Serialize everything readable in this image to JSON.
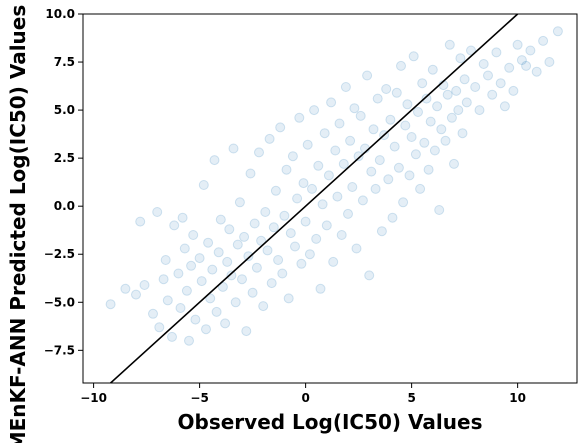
{
  "chart_data": {
    "type": "scatter",
    "title": "",
    "xlabel": "Observed Log(IC50) Values",
    "ylabel": "MEnKF-ANN Predicted Log(IC50) Values",
    "xlim": [
      -10.5,
      12.8
    ],
    "ylim": [
      -9.2,
      10.0
    ],
    "x_ticks": [
      -10,
      -5,
      0,
      5,
      10
    ],
    "y_ticks": [
      -7.5,
      -5.0,
      -2.5,
      0.0,
      2.5,
      5.0,
      7.5,
      10.0
    ],
    "x_tick_labels": [
      "−10",
      "−5",
      "0",
      "5",
      "10"
    ],
    "y_tick_labels": [
      "−7.5",
      "−5.0",
      "−2.5",
      "0.0",
      "2.5",
      "5.0",
      "7.5",
      "10.0"
    ],
    "grid": false,
    "legend": "none",
    "point_color": "#1f77b4",
    "point_alpha": 0.12,
    "reference_line": {
      "type": "identity",
      "slope": 1,
      "intercept": 0,
      "color": "#000000"
    },
    "series": [
      {
        "values_estimated": true,
        "points": [
          [
            -9.2,
            -5.1
          ],
          [
            -8.5,
            -4.3
          ],
          [
            -8.0,
            -4.6
          ],
          [
            -7.8,
            -0.8
          ],
          [
            -7.6,
            -4.1
          ],
          [
            -7.2,
            -5.6
          ],
          [
            -7.0,
            -0.3
          ],
          [
            -6.9,
            -6.3
          ],
          [
            -6.7,
            -3.8
          ],
          [
            -6.6,
            -2.8
          ],
          [
            -6.5,
            -4.9
          ],
          [
            -6.3,
            -6.8
          ],
          [
            -6.2,
            -1.0
          ],
          [
            -6.0,
            -3.5
          ],
          [
            -5.9,
            -5.3
          ],
          [
            -5.8,
            -0.6
          ],
          [
            -5.7,
            -2.2
          ],
          [
            -5.6,
            -4.4
          ],
          [
            -5.5,
            -7.0
          ],
          [
            -5.4,
            -3.1
          ],
          [
            -5.3,
            -1.5
          ],
          [
            -5.2,
            -5.9
          ],
          [
            -5.0,
            -2.7
          ],
          [
            -4.9,
            -3.9
          ],
          [
            -4.8,
            1.1
          ],
          [
            -4.7,
            -6.4
          ],
          [
            -4.6,
            -1.9
          ],
          [
            -4.5,
            -4.8
          ],
          [
            -4.4,
            -3.3
          ],
          [
            -4.3,
            2.4
          ],
          [
            -4.2,
            -5.5
          ],
          [
            -4.1,
            -2.4
          ],
          [
            -4.0,
            -0.7
          ],
          [
            -3.9,
            -4.2
          ],
          [
            -3.8,
            -6.1
          ],
          [
            -3.7,
            -2.9
          ],
          [
            -3.6,
            -1.2
          ],
          [
            -3.5,
            -3.6
          ],
          [
            -3.4,
            3.0
          ],
          [
            -3.3,
            -5.0
          ],
          [
            -3.2,
            -2.0
          ],
          [
            -3.1,
            0.2
          ],
          [
            -3.0,
            -3.8
          ],
          [
            -2.9,
            -1.6
          ],
          [
            -2.8,
            -6.5
          ],
          [
            -2.7,
            -2.6
          ],
          [
            -2.6,
            1.7
          ],
          [
            -2.5,
            -4.5
          ],
          [
            -2.4,
            -0.9
          ],
          [
            -2.3,
            -3.2
          ],
          [
            -2.2,
            2.8
          ],
          [
            -2.1,
            -1.8
          ],
          [
            -2.0,
            -5.2
          ],
          [
            -1.9,
            -0.3
          ],
          [
            -1.8,
            -2.3
          ],
          [
            -1.7,
            3.5
          ],
          [
            -1.6,
            -4.0
          ],
          [
            -1.5,
            -1.1
          ],
          [
            -1.4,
            0.8
          ],
          [
            -1.3,
            -2.8
          ],
          [
            -1.2,
            4.1
          ],
          [
            -1.1,
            -3.5
          ],
          [
            -1.0,
            -0.5
          ],
          [
            -0.9,
            1.9
          ],
          [
            -0.8,
            -4.8
          ],
          [
            -0.7,
            -1.4
          ],
          [
            -0.6,
            2.6
          ],
          [
            -0.5,
            -2.1
          ],
          [
            -0.4,
            0.4
          ],
          [
            -0.3,
            4.6
          ],
          [
            -0.2,
            -3.0
          ],
          [
            -0.1,
            1.2
          ],
          [
            0.0,
            -0.8
          ],
          [
            0.1,
            3.2
          ],
          [
            0.2,
            -2.5
          ],
          [
            0.3,
            0.9
          ],
          [
            0.4,
            5.0
          ],
          [
            0.5,
            -1.7
          ],
          [
            0.6,
            2.1
          ],
          [
            0.7,
            -4.3
          ],
          [
            0.8,
            0.1
          ],
          [
            0.9,
            3.8
          ],
          [
            1.0,
            -1.0
          ],
          [
            1.1,
            1.6
          ],
          [
            1.2,
            5.4
          ],
          [
            1.3,
            -2.9
          ],
          [
            1.4,
            2.9
          ],
          [
            1.5,
            0.5
          ],
          [
            1.6,
            4.3
          ],
          [
            1.7,
            -1.5
          ],
          [
            1.8,
            2.2
          ],
          [
            1.9,
            6.2
          ],
          [
            2.0,
            -0.4
          ],
          [
            2.1,
            3.4
          ],
          [
            2.2,
            1.0
          ],
          [
            2.3,
            5.1
          ],
          [
            2.4,
            -2.2
          ],
          [
            2.5,
            2.6
          ],
          [
            2.6,
            4.7
          ],
          [
            2.7,
            0.3
          ],
          [
            2.8,
            3.0
          ],
          [
            2.9,
            6.8
          ],
          [
            3.0,
            -3.6
          ],
          [
            3.1,
            1.8
          ],
          [
            3.2,
            4.0
          ],
          [
            3.3,
            0.9
          ],
          [
            3.4,
            5.6
          ],
          [
            3.5,
            2.4
          ],
          [
            3.6,
            -1.3
          ],
          [
            3.7,
            3.7
          ],
          [
            3.8,
            6.1
          ],
          [
            3.9,
            1.4
          ],
          [
            4.0,
            4.5
          ],
          [
            4.1,
            -0.6
          ],
          [
            4.2,
            3.1
          ],
          [
            4.3,
            5.9
          ],
          [
            4.4,
            2.0
          ],
          [
            4.5,
            7.3
          ],
          [
            4.6,
            0.2
          ],
          [
            4.7,
            4.2
          ],
          [
            4.8,
            5.3
          ],
          [
            4.9,
            1.6
          ],
          [
            5.0,
            3.6
          ],
          [
            5.1,
            7.8
          ],
          [
            5.2,
            2.7
          ],
          [
            5.3,
            4.9
          ],
          [
            5.4,
            0.9
          ],
          [
            5.5,
            6.4
          ],
          [
            5.6,
            3.3
          ],
          [
            5.7,
            5.6
          ],
          [
            5.8,
            1.9
          ],
          [
            5.9,
            4.4
          ],
          [
            6.0,
            7.1
          ],
          [
            6.1,
            2.9
          ],
          [
            6.2,
            5.2
          ],
          [
            6.3,
            -0.2
          ],
          [
            6.4,
            4.0
          ],
          [
            6.5,
            6.3
          ],
          [
            6.6,
            3.4
          ],
          [
            6.7,
            5.8
          ],
          [
            6.8,
            8.4
          ],
          [
            6.9,
            4.6
          ],
          [
            7.0,
            2.2
          ],
          [
            7.1,
            6.0
          ],
          [
            7.2,
            5.0
          ],
          [
            7.3,
            7.7
          ],
          [
            7.4,
            3.8
          ],
          [
            7.5,
            6.6
          ],
          [
            7.6,
            5.4
          ],
          [
            7.8,
            8.1
          ],
          [
            8.0,
            6.2
          ],
          [
            8.2,
            5.0
          ],
          [
            8.4,
            7.4
          ],
          [
            8.6,
            6.8
          ],
          [
            8.8,
            5.8
          ],
          [
            9.0,
            8.0
          ],
          [
            9.2,
            6.4
          ],
          [
            9.4,
            5.2
          ],
          [
            9.6,
            7.2
          ],
          [
            9.8,
            6.0
          ],
          [
            10.0,
            8.4
          ],
          [
            10.2,
            7.6
          ],
          [
            10.4,
            7.3
          ],
          [
            10.6,
            8.1
          ],
          [
            10.9,
            7.0
          ],
          [
            11.2,
            8.6
          ],
          [
            11.5,
            7.5
          ],
          [
            11.9,
            9.1
          ]
        ]
      }
    ]
  }
}
